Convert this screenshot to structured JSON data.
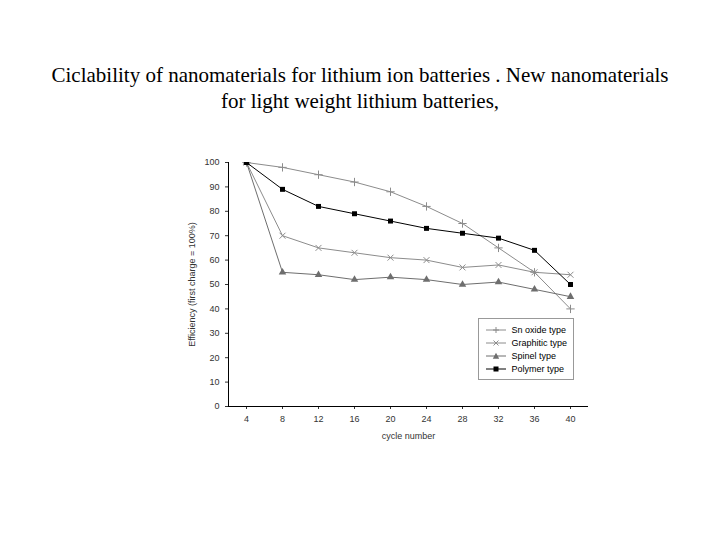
{
  "chart_data": {
    "type": "line",
    "title": "Ciclability of nanomaterials for lithium ion batteries . New nanomaterials for light weight lithium batteries,",
    "x_label": "cycle number",
    "y_label": "Efficiency (first charge = 100%)",
    "x": [
      4,
      8,
      12,
      16,
      20,
      24,
      28,
      32,
      36,
      40
    ],
    "series": [
      {
        "name": "Sn oxide type",
        "color": "#8c8c8c",
        "marker": "plus",
        "values": [
          100,
          98,
          95,
          92,
          88,
          82,
          75,
          65,
          55,
          40
        ]
      },
      {
        "name": "Graphitic type",
        "color": "#8c8c8c",
        "marker": "times",
        "values": [
          100,
          70,
          65,
          63,
          61,
          60,
          57,
          58,
          55,
          54
        ]
      },
      {
        "name": "Spinel type",
        "color": "#6e6e6e",
        "marker": "triangle",
        "values": [
          100,
          55,
          54,
          52,
          53,
          52,
          50,
          51,
          48,
          45
        ]
      },
      {
        "name": "Polymer type",
        "color": "#000000",
        "marker": "square",
        "values": [
          100,
          89,
          82,
          79,
          76,
          73,
          71,
          69,
          64,
          50
        ]
      }
    ],
    "xlim": [
      2,
      42
    ],
    "xticks": [
      4,
      8,
      12,
      16,
      20,
      24,
      28,
      32,
      36,
      40
    ],
    "ylim": [
      0,
      100
    ],
    "yticks": [
      0,
      10,
      20,
      30,
      40,
      50,
      60,
      70,
      80,
      90,
      100
    ],
    "grid": false,
    "legend": "lower right"
  }
}
